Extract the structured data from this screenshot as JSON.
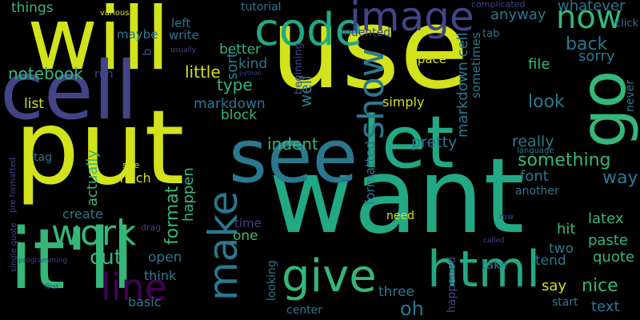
{
  "cloud": {
    "words": [
      {
        "text": "use",
        "color": "#d2e21b",
        "weight": 1.0
      },
      {
        "text": "want",
        "color": "#22a884",
        "weight": 0.96
      },
      {
        "text": "put",
        "color": "#d2e21b",
        "weight": 0.9
      },
      {
        "text": "will",
        "color": "#d2e21b",
        "weight": 0.82
      },
      {
        "text": "it'll",
        "color": "#35b779",
        "weight": 0.8
      },
      {
        "text": "cell",
        "color": "#414487",
        "weight": 0.76
      },
      {
        "text": "see",
        "color": "#2a788e",
        "weight": 0.74
      },
      {
        "text": "let",
        "color": "#22a884",
        "weight": 0.72
      },
      {
        "text": "go",
        "color": "#35b779",
        "weight": 0.6
      },
      {
        "text": "html",
        "color": "#22a884",
        "weight": 0.56
      },
      {
        "text": "code",
        "color": "#22a884",
        "weight": 0.5
      },
      {
        "text": "give",
        "color": "#35b779",
        "weight": 0.5
      },
      {
        "text": "make",
        "color": "#2a788e",
        "weight": 0.5
      },
      {
        "text": "image",
        "color": "#414487",
        "weight": 0.5
      },
      {
        "text": "show",
        "color": "#2a788e",
        "weight": 0.48
      },
      {
        "text": "line",
        "color": "#440154",
        "weight": 0.46
      },
      {
        "text": "work",
        "color": "#35b779",
        "weight": 0.44
      },
      {
        "text": "now",
        "color": "#35b779",
        "weight": 0.4
      },
      {
        "text": "cut",
        "color": "#35b779",
        "weight": 0.3
      },
      {
        "text": "oh",
        "color": "#2a788e",
        "weight": 0.3
      },
      {
        "text": "format",
        "color": "#35b779",
        "weight": 0.28
      },
      {
        "text": "something",
        "color": "#35b779",
        "weight": 0.28
      },
      {
        "text": "well",
        "color": "#2a788e",
        "weight": 0.26
      },
      {
        "text": "look",
        "color": "#2a788e",
        "weight": 0.26
      },
      {
        "text": "nice",
        "color": "#35b779",
        "weight": 0.26
      },
      {
        "text": "back",
        "color": "#2a788e",
        "weight": 0.26
      },
      {
        "text": "way",
        "color": "#2a788e",
        "weight": 0.26
      },
      {
        "text": "markdown cell",
        "color": "#2a788e",
        "weight": 0.25
      },
      {
        "text": "notebook",
        "color": "#35b779",
        "weight": 0.24
      },
      {
        "text": "type",
        "color": "#35b779",
        "weight": 0.24
      },
      {
        "text": "little",
        "color": "#d2e21b",
        "weight": 0.24
      },
      {
        "text": "indent",
        "color": "#35b779",
        "weight": 0.24
      },
      {
        "text": "pretty",
        "color": "#2a788e",
        "weight": 0.23
      },
      {
        "text": "really",
        "color": "#2a788e",
        "weight": 0.23
      },
      {
        "text": "whatever",
        "color": "#2a788e",
        "weight": 0.23
      },
      {
        "text": "anyway",
        "color": "#2a788e",
        "weight": 0.23
      },
      {
        "text": "happen",
        "color": "#35b779",
        "weight": 0.22
      },
      {
        "text": "text",
        "color": "#2a788e",
        "weight": 0.22
      },
      {
        "text": "latex",
        "color": "#35b779",
        "weight": 0.22
      },
      {
        "text": "paste",
        "color": "#35b779",
        "weight": 0.22
      },
      {
        "text": "hit",
        "color": "#35b779",
        "weight": 0.22
      },
      {
        "text": "say",
        "color": "#d2e21b",
        "weight": 0.22
      },
      {
        "text": "actually",
        "color": "#35b779",
        "weight": 0.22
      },
      {
        "text": "file",
        "color": "#35b779",
        "weight": 0.21
      },
      {
        "text": "sorry",
        "color": "#2a788e",
        "weight": 0.21
      },
      {
        "text": "font",
        "color": "#2a788e",
        "weight": 0.21
      },
      {
        "text": "quote",
        "color": "#35b779",
        "weight": 0.21
      },
      {
        "text": "sort",
        "color": "#2a788e",
        "weight": 0.21
      },
      {
        "text": "things",
        "color": "#35b779",
        "weight": 0.2
      },
      {
        "text": "better",
        "color": "#35b779",
        "weight": 0.2
      },
      {
        "text": "block",
        "color": "#35b779",
        "weight": 0.2
      },
      {
        "text": "markdown",
        "color": "#2a788e",
        "weight": 0.2
      },
      {
        "text": "kind",
        "color": "#2a788e",
        "weight": 0.2
      },
      {
        "text": "list",
        "color": "#d2e21b",
        "weight": 0.2
      },
      {
        "text": "one",
        "color": "#35b779",
        "weight": 0.2
      },
      {
        "text": "open",
        "color": "#2a788e",
        "weight": 0.2
      },
      {
        "text": "three",
        "color": "#2a788e",
        "weight": 0.2
      },
      {
        "text": "formatted",
        "color": "#2a788e",
        "weight": 0.19
      },
      {
        "text": "tend",
        "color": "#2a788e",
        "weight": 0.19
      },
      {
        "text": "two",
        "color": "#2a788e",
        "weight": 0.19
      },
      {
        "text": "create",
        "color": "#2a788e",
        "weight": 0.18
      },
      {
        "text": "much",
        "color": "#d2e21b",
        "weight": 0.18
      },
      {
        "text": "basic",
        "color": "#2a788e",
        "weight": 0.18
      },
      {
        "text": "think",
        "color": "#2a788e",
        "weight": 0.18
      },
      {
        "text": "simply",
        "color": "#d2e21b",
        "weight": 0.18
      },
      {
        "text": "space",
        "color": "#d2e21b",
        "weight": 0.17
      },
      {
        "text": "left",
        "color": "#2a788e",
        "weight": 0.17
      },
      {
        "text": "write",
        "color": "#2a788e",
        "weight": 0.17
      },
      {
        "text": "maybe",
        "color": "#2a788e",
        "weight": 0.16
      },
      {
        "text": "tutorial",
        "color": "#2a788e",
        "weight": 0.16
      },
      {
        "text": "indented",
        "color": "#414487",
        "weight": 0.16
      },
      {
        "text": "tag",
        "color": "#2a788e",
        "weight": 0.16
      },
      {
        "text": "need",
        "color": "#d2e21b",
        "weight": 0.16
      },
      {
        "text": "time",
        "color": "#414487",
        "weight": 0.16
      },
      {
        "text": "another",
        "color": "#2a788e",
        "weight": 0.16
      },
      {
        "text": "sometimes",
        "color": "#2a788e",
        "weight": 0.16
      },
      {
        "text": "run",
        "color": "#414487",
        "weight": 0.16
      },
      {
        "text": "tab",
        "color": "#2a788e",
        "weight": 0.15
      },
      {
        "text": "click",
        "color": "#2a788e",
        "weight": 0.15
      },
      {
        "text": "take",
        "color": "#2a788e",
        "weight": 0.15
      },
      {
        "text": "start",
        "color": "#2a788e",
        "weight": 0.15
      },
      {
        "text": "never",
        "color": "#2a788e",
        "weight": 0.15
      },
      {
        "text": "looking",
        "color": "#2a788e",
        "weight": 0.15
      },
      {
        "text": "center",
        "color": "#2a788e",
        "weight": 0.15
      },
      {
        "text": "happened",
        "color": "#414487",
        "weight": 0.14
      },
      {
        "text": "beginning",
        "color": "#414487",
        "weight": 0.13
      },
      {
        "text": "b",
        "color": "#414487",
        "weight": 0.14
      },
      {
        "text": "complicated",
        "color": "#414487",
        "weight": 0.11
      },
      {
        "text": "various",
        "color": "#d2e21b",
        "weight": 0.1
      },
      {
        "text": "usually",
        "color": "#414487",
        "weight": 0.1
      },
      {
        "text": "python",
        "color": "#414487",
        "weight": 0.09
      },
      {
        "text": "size",
        "color": "#d2e21b",
        "weight": 0.1
      },
      {
        "text": "drag",
        "color": "#414487",
        "weight": 0.11
      },
      {
        "text": "language",
        "color": "#2a788e",
        "weight": 0.1
      },
      {
        "text": "row",
        "color": "#414487",
        "weight": 0.1
      },
      {
        "text": "called",
        "color": "#414487",
        "weight": 0.09
      },
      {
        "text": "first",
        "color": "#414487",
        "weight": 0.09
      },
      {
        "text": "programming",
        "color": "#414487",
        "weight": 0.09
      },
      {
        "text": "single quote",
        "color": "#414487",
        "weight": 0.09
      },
      {
        "text": "pre formatted",
        "color": "#414487",
        "weight": 0.09
      }
    ]
  }
}
